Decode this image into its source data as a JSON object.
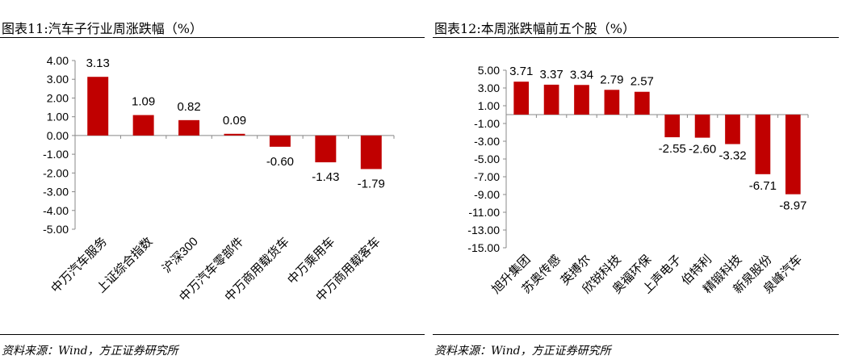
{
  "left": {
    "title": "图表11:汽车子行业周涨跌幅（%）",
    "source": "资料来源：Wind，方正证券研究所"
  },
  "right": {
    "title": "图表12:本周涨跌幅前五个股（%）",
    "source": "资料来源：Wind，方正证券研究所"
  },
  "colors": {
    "bar": "#c00000",
    "axis": "#888888",
    "text": "#000000"
  },
  "chart_data": [
    {
      "type": "bar",
      "title": "图表11:汽车子行业周涨跌幅（%）",
      "categories": [
        "中万汽车服务",
        "上证综合指数",
        "沪深300",
        "中万汽车零部件",
        "中万商用载货车",
        "中万乘用车",
        "中万商用载客车"
      ],
      "values": [
        3.13,
        1.09,
        0.82,
        0.09,
        -0.6,
        -1.43,
        -1.79
      ],
      "data_labels": [
        "3.13",
        "1.09",
        "0.82",
        "0.09",
        "-0.60",
        "-1.43",
        "-1.79"
      ],
      "yticks": [
        "4.00",
        "3.00",
        "2.00",
        "1.00",
        "0.00",
        "-1.00",
        "-2.00",
        "-3.00",
        "-4.00",
        "-5.00"
      ],
      "ylim": [
        -5,
        4
      ],
      "grid": false,
      "legend": "none"
    },
    {
      "type": "bar",
      "title": "图表12:本周涨跌幅前五个股（%）",
      "categories": [
        "旭升集团",
        "苏奥传感",
        "英搏尔",
        "欣锐科技",
        "奥福环保",
        "上声电子",
        "伯特利",
        "精锻科技",
        "新泉股份",
        "泉峰汽车"
      ],
      "values": [
        3.71,
        3.37,
        3.34,
        2.79,
        2.57,
        -2.55,
        -2.6,
        -3.32,
        -6.71,
        -8.97
      ],
      "data_labels": [
        "3.71",
        "3.37",
        "3.34",
        "2.79",
        "2.57",
        "-2.55",
        "-2.60",
        "-3.32",
        "-6.71",
        "-8.97"
      ],
      "yticks": [
        "5.00",
        "3.00",
        "1.00",
        "-1.00",
        "-3.00",
        "-5.00",
        "-7.00",
        "-9.00",
        "-11.00",
        "-13.00",
        "-15.00"
      ],
      "ylim": [
        -15,
        5
      ],
      "grid": false,
      "legend": "none"
    }
  ]
}
